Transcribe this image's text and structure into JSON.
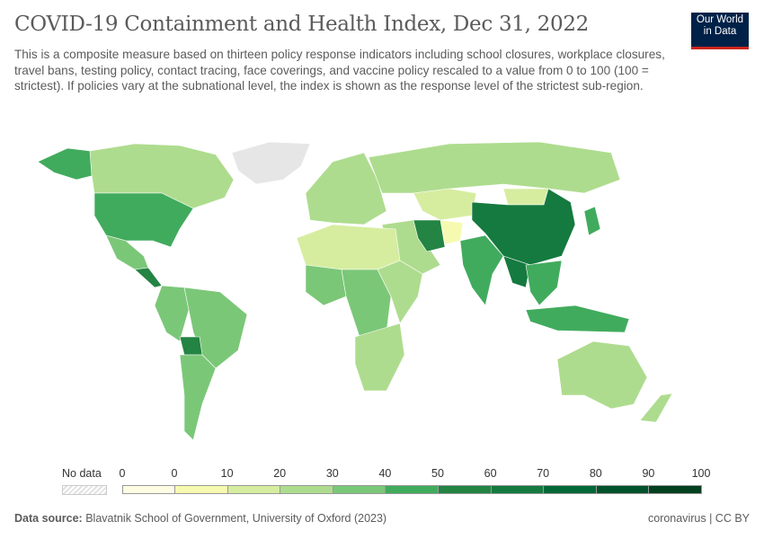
{
  "header": {
    "title": "COVID-19 Containment and Health Index, Dec 31, 2022",
    "subtitle": "This is a composite measure based on thirteen policy response indicators including school closures, workplace closures, travel bans, testing policy, contact tracing, face coverings, and vaccine policy rescaled to a value from 0 to 100 (100 = strictest). If policies vary at the subnational level, the index is shown as the response level of the strictest sub-region.",
    "logo": "Our World in Data"
  },
  "legend": {
    "no_data_label": "No data",
    "ticks": [
      "0",
      "0",
      "10",
      "20",
      "30",
      "40",
      "50",
      "60",
      "70",
      "80",
      "90",
      "100"
    ],
    "bins": [
      {
        "color": "#fefde4"
      },
      {
        "color": "#f6fab0"
      },
      {
        "color": "#d6eda0"
      },
      {
        "color": "#aedc8e"
      },
      {
        "color": "#7bc778"
      },
      {
        "color": "#41ab5d"
      },
      {
        "color": "#238443"
      },
      {
        "color": "#157a3f"
      },
      {
        "color": "#006837"
      },
      {
        "color": "#00522c"
      },
      {
        "color": "#00401f"
      }
    ]
  },
  "map": {
    "regions": [
      {
        "name": "canada",
        "value": 25
      },
      {
        "name": "alaska",
        "value": 45
      },
      {
        "name": "greenland",
        "value": null
      },
      {
        "name": "united-states",
        "value": 45
      },
      {
        "name": "mexico",
        "value": 35
      },
      {
        "name": "central-america",
        "value": 55
      },
      {
        "name": "brazil",
        "value": 35
      },
      {
        "name": "andes",
        "value": 35
      },
      {
        "name": "argentina",
        "value": 35
      },
      {
        "name": "bolivia",
        "value": 55
      },
      {
        "name": "europe",
        "value": 25
      },
      {
        "name": "russia",
        "value": 25
      },
      {
        "name": "kazakhstan",
        "value": 15
      },
      {
        "name": "north-africa",
        "value": 15
      },
      {
        "name": "west-africa",
        "value": 35
      },
      {
        "name": "central-africa",
        "value": 35
      },
      {
        "name": "east-africa",
        "value": 25
      },
      {
        "name": "southern-africa",
        "value": 25
      },
      {
        "name": "middle-east",
        "value": 25
      },
      {
        "name": "iran",
        "value": 55
      },
      {
        "name": "afghanistan",
        "value": 5
      },
      {
        "name": "india",
        "value": 45
      },
      {
        "name": "china",
        "value": 65
      },
      {
        "name": "mongolia",
        "value": 15
      },
      {
        "name": "myanmar",
        "value": 65
      },
      {
        "name": "southeast-asia",
        "value": 45
      },
      {
        "name": "indonesia",
        "value": 45
      },
      {
        "name": "japan",
        "value": 45
      },
      {
        "name": "australia",
        "value": 25
      },
      {
        "name": "new-zealand",
        "value": 25
      }
    ]
  },
  "footer": {
    "source_label": "Data source:",
    "source": "Blavatnik School of Government, University of Oxford (2023)",
    "right": "coronavirus | CC BY"
  }
}
